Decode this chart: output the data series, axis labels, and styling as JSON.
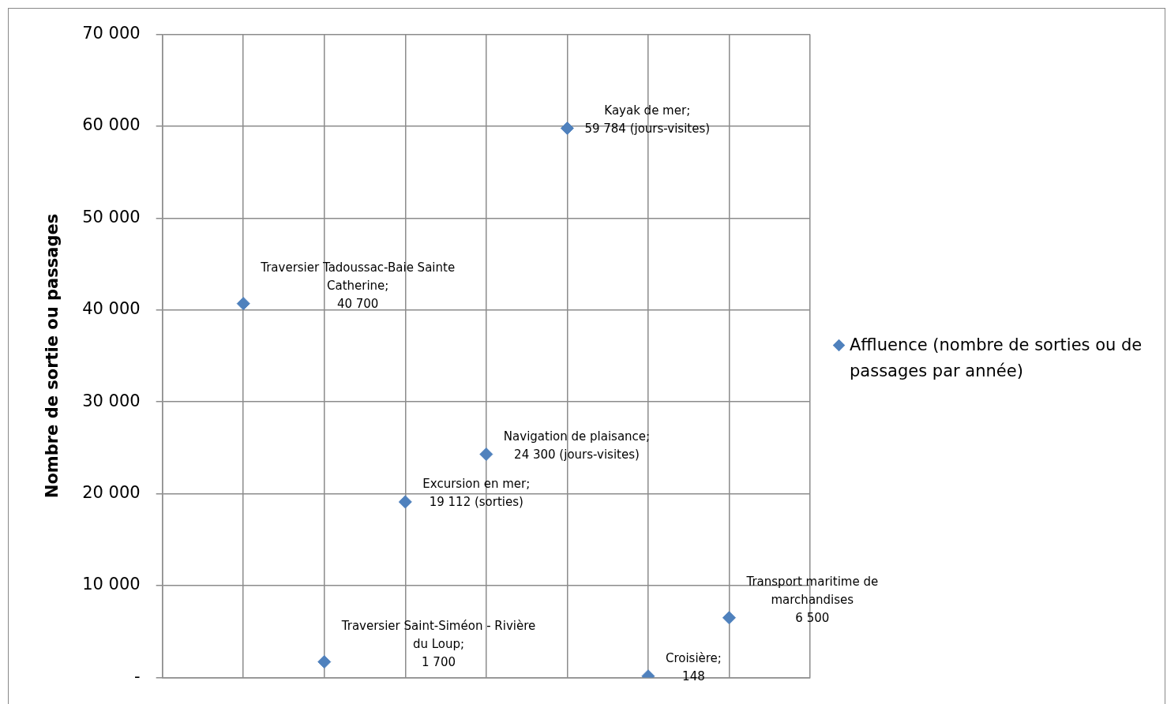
{
  "chart_data": {
    "type": "scatter",
    "ylabel": "Nombre de sortie ou passages",
    "categories": [
      null,
      null,
      null,
      null,
      null,
      null,
      null
    ],
    "series": [
      {
        "name": "Affluence (nombre de sorties ou de passages par année)",
        "color": "#4f81bd",
        "values": [
          40700,
          1700,
          19112,
          24300,
          59784,
          148,
          6500
        ],
        "value_labels": [
          "Traversier Tadoussac-Baie Sainte Catherine;\n40 700",
          "Traversier Saint-Siméon - Rivière du Loup;\n1 700",
          "Excursion en mer;\n19 112 (sorties)",
          "Navigation de plaisance;\n24 300 (jours-visites)",
          "Kayak de mer;\n59 784 (jours-visites)",
          "Croisière;\n148",
          "Transport maritime de marchandises\n6 500"
        ]
      }
    ],
    "ylim": [
      0,
      70000
    ],
    "yticks": [
      {
        "value": 0,
        "label": "-"
      },
      {
        "value": 10000,
        "label": "10 000"
      },
      {
        "value": 20000,
        "label": "20 000"
      },
      {
        "value": 30000,
        "label": "30 000"
      },
      {
        "value": 40000,
        "label": "40 000"
      },
      {
        "value": 50000,
        "label": "50 000"
      },
      {
        "value": 60000,
        "label": "60 000"
      },
      {
        "value": 70000,
        "label": "70 000"
      }
    ],
    "grid": true,
    "legend": "right",
    "marker": "diamond",
    "tick_labels": "y"
  }
}
